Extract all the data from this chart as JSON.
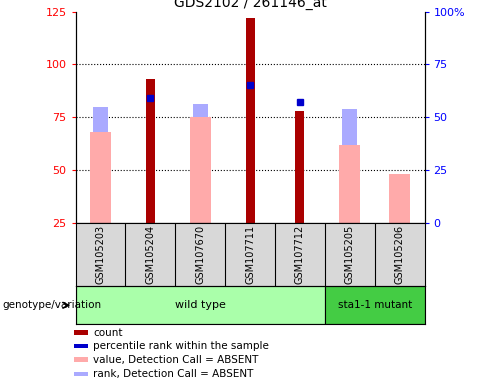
{
  "title": "GDS2102 / 261146_at",
  "samples": [
    "GSM105203",
    "GSM105204",
    "GSM107670",
    "GSM107711",
    "GSM107712",
    "GSM105205",
    "GSM105206"
  ],
  "count_values": [
    null,
    93,
    null,
    122,
    78,
    null,
    null
  ],
  "percentile_rank": [
    null,
    59,
    null,
    65,
    57,
    null,
    null
  ],
  "absent_value": [
    68,
    null,
    75,
    null,
    null,
    62,
    48
  ],
  "absent_rank": [
    55,
    null,
    56,
    null,
    null,
    54,
    null
  ],
  "ylim_left": [
    25,
    125
  ],
  "ylim_right": [
    0,
    100
  ],
  "yticks_left": [
    25,
    50,
    75,
    100,
    125
  ],
  "yticks_right": [
    0,
    25,
    50,
    75,
    100
  ],
  "ytick_labels_right": [
    "0",
    "25",
    "50",
    "75",
    "100%"
  ],
  "color_count": "#aa0000",
  "color_percentile": "#0000cc",
  "color_absent_value": "#ffaaaa",
  "color_absent_rank": "#aaaaff",
  "color_wild_type_light": "#aaffaa",
  "color_sta1_mutant": "#44cc44",
  "grid_lines": [
    50,
    75,
    100
  ],
  "background_color": "#d8d8d8",
  "wild_type_count": 5,
  "sta1_mutant_count": 2
}
